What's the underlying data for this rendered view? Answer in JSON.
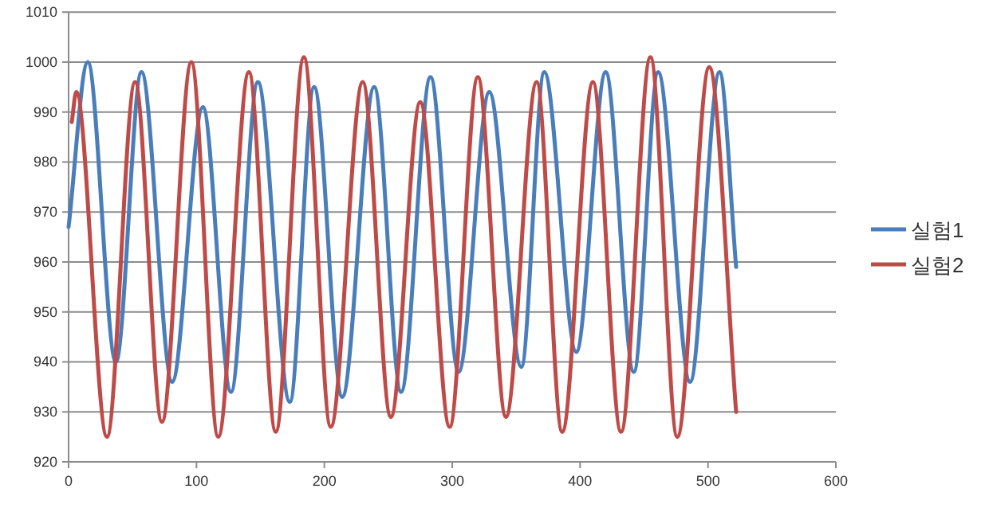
{
  "chart_data": {
    "type": "line",
    "xlim": [
      0,
      600
    ],
    "ylim": [
      920,
      1010
    ],
    "xticks": [
      0,
      100,
      200,
      300,
      400,
      500,
      600
    ],
    "yticks": [
      920,
      930,
      940,
      950,
      960,
      970,
      980,
      990,
      1000,
      1010
    ],
    "grid": "y",
    "legend": "right",
    "series": [
      {
        "name": "실험1",
        "color": "#4a7ebb",
        "x": [
          0,
          15,
          37,
          57,
          81,
          105,
          127,
          148,
          173,
          192,
          214,
          239,
          260,
          283,
          305,
          329,
          354,
          372,
          397,
          420,
          442,
          461,
          486,
          509,
          522
        ],
        "values": [
          967,
          1000,
          940,
          998,
          936,
          991,
          934,
          996,
          932,
          995,
          933,
          995,
          934,
          997,
          938,
          994,
          939,
          998,
          942,
          998,
          938,
          998,
          936,
          998,
          959
        ]
      },
      {
        "name": "실험2",
        "color": "#be4b48",
        "x": [
          2.5,
          6,
          30,
          52,
          73,
          96,
          117,
          141,
          162,
          184,
          205,
          230,
          252,
          275,
          298,
          320,
          342,
          366,
          386,
          410,
          432,
          455,
          476,
          501,
          522
        ],
        "values": [
          988,
          994,
          925,
          996,
          928,
          1000,
          925,
          998,
          926,
          1001,
          927,
          996,
          929,
          992,
          927,
          997,
          929,
          996,
          926,
          996,
          926,
          1001,
          925,
          999,
          930
        ]
      }
    ]
  }
}
